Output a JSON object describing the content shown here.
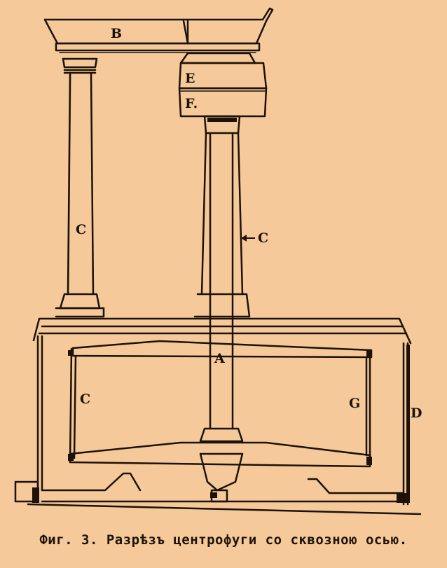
{
  "figure": {
    "labels": {
      "B": "B",
      "E": "E",
      "F": "F.",
      "C_column": "C",
      "C_arrow": "C",
      "A": "A",
      "C_drum_left": "C",
      "G": "G",
      "D": "D"
    },
    "caption": "Фиг. 3. Разрѣзъ центрофуги со сквозною осью."
  },
  "colors": {
    "paper": "#f5c999",
    "ink": "#1c1208"
  }
}
